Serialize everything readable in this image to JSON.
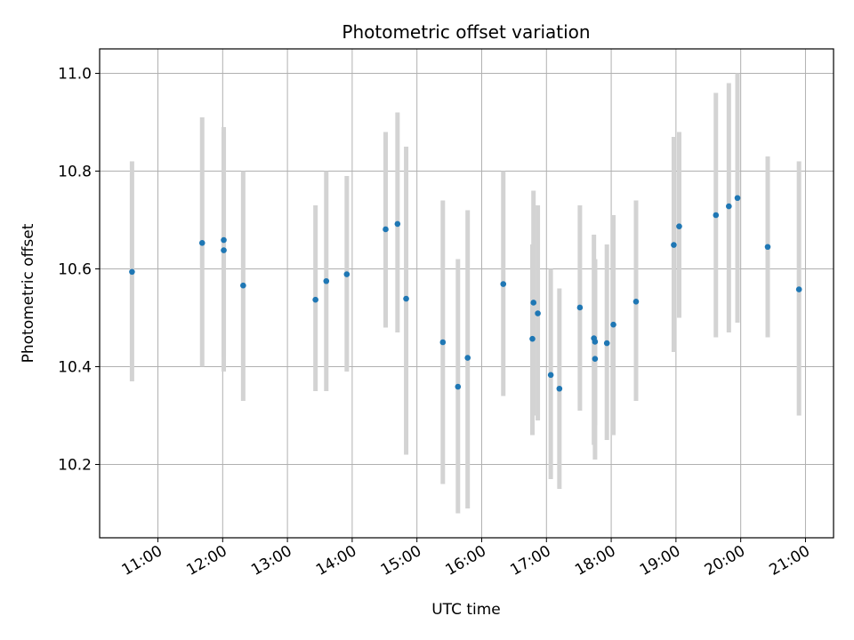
{
  "chart_data": {
    "type": "scatter",
    "title": "Photometric offset variation",
    "xlabel": "UTC time",
    "ylabel": "Photometric offset",
    "x_tick_labels": [
      "11:00",
      "12:00",
      "13:00",
      "14:00",
      "15:00",
      "16:00",
      "17:00",
      "18:00",
      "19:00",
      "20:00",
      "21:00"
    ],
    "y_tick_labels": [
      "10.2",
      "10.4",
      "10.6",
      "10.8",
      "11.0"
    ],
    "y_ticks": [
      10.2,
      10.4,
      10.6,
      10.8,
      11.0
    ],
    "xlim": [
      "10:06",
      "21:26"
    ],
    "ylim": [
      10.05,
      11.05
    ],
    "grid": true,
    "marker_color": "#1f77b4",
    "errorbar_color": "#d3d3d3",
    "points": [
      {
        "x": "10:36",
        "y": 10.594,
        "lo": 10.37,
        "hi": 10.82
      },
      {
        "x": "11:41",
        "y": 10.653,
        "lo": 10.4,
        "hi": 10.91
      },
      {
        "x": "12:01",
        "y": 10.659,
        "lo": 10.42,
        "hi": 10.89
      },
      {
        "x": "12:01",
        "y": 10.638,
        "lo": 10.39,
        "hi": 10.88
      },
      {
        "x": "12:19",
        "y": 10.566,
        "lo": 10.33,
        "hi": 10.8
      },
      {
        "x": "13:26",
        "y": 10.537,
        "lo": 10.35,
        "hi": 10.73
      },
      {
        "x": "13:36",
        "y": 10.575,
        "lo": 10.35,
        "hi": 10.8
      },
      {
        "x": "13:55",
        "y": 10.589,
        "lo": 10.39,
        "hi": 10.79
      },
      {
        "x": "14:31",
        "y": 10.681,
        "lo": 10.48,
        "hi": 10.88
      },
      {
        "x": "14:42",
        "y": 10.692,
        "lo": 10.47,
        "hi": 10.92
      },
      {
        "x": "14:50",
        "y": 10.539,
        "lo": 10.22,
        "hi": 10.85
      },
      {
        "x": "15:24",
        "y": 10.45,
        "lo": 10.16,
        "hi": 10.74
      },
      {
        "x": "15:38",
        "y": 10.359,
        "lo": 10.1,
        "hi": 10.62
      },
      {
        "x": "15:47",
        "y": 10.418,
        "lo": 10.11,
        "hi": 10.72
      },
      {
        "x": "16:20",
        "y": 10.569,
        "lo": 10.34,
        "hi": 10.8
      },
      {
        "x": "16:47",
        "y": 10.457,
        "lo": 10.26,
        "hi": 10.65
      },
      {
        "x": "16:48",
        "y": 10.531,
        "lo": 10.3,
        "hi": 10.76
      },
      {
        "x": "16:52",
        "y": 10.509,
        "lo": 10.29,
        "hi": 10.73
      },
      {
        "x": "17:04",
        "y": 10.383,
        "lo": 10.17,
        "hi": 10.6
      },
      {
        "x": "17:12",
        "y": 10.355,
        "lo": 10.15,
        "hi": 10.56
      },
      {
        "x": "17:31",
        "y": 10.521,
        "lo": 10.31,
        "hi": 10.73
      },
      {
        "x": "17:44",
        "y": 10.458,
        "lo": 10.24,
        "hi": 10.67
      },
      {
        "x": "17:45",
        "y": 10.451,
        "lo": 10.28,
        "hi": 10.62
      },
      {
        "x": "17:45",
        "y": 10.416,
        "lo": 10.21,
        "hi": 10.62
      },
      {
        "x": "17:56",
        "y": 10.448,
        "lo": 10.25,
        "hi": 10.65
      },
      {
        "x": "18:02",
        "y": 10.486,
        "lo": 10.26,
        "hi": 10.71
      },
      {
        "x": "18:23",
        "y": 10.533,
        "lo": 10.33,
        "hi": 10.74
      },
      {
        "x": "18:58",
        "y": 10.649,
        "lo": 10.43,
        "hi": 10.87
      },
      {
        "x": "19:03",
        "y": 10.687,
        "lo": 10.5,
        "hi": 10.88
      },
      {
        "x": "19:37",
        "y": 10.71,
        "lo": 10.46,
        "hi": 10.96
      },
      {
        "x": "19:49",
        "y": 10.728,
        "lo": 10.47,
        "hi": 10.98
      },
      {
        "x": "19:57",
        "y": 10.745,
        "lo": 10.49,
        "hi": 11.0
      },
      {
        "x": "20:25",
        "y": 10.645,
        "lo": 10.46,
        "hi": 10.83
      },
      {
        "x": "20:54",
        "y": 10.558,
        "lo": 10.3,
        "hi": 10.82
      }
    ]
  }
}
